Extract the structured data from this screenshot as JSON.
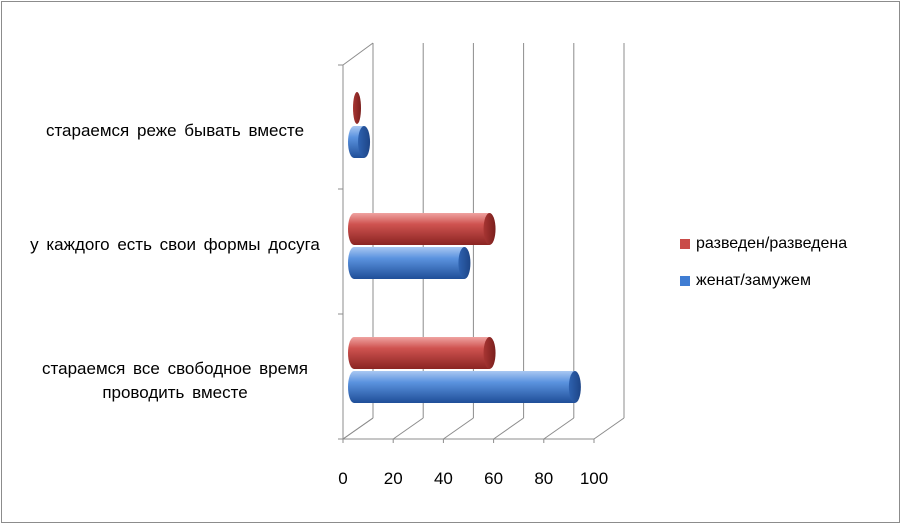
{
  "chart_data": {
    "type": "bar",
    "orientation": "horizontal",
    "style": "3d-cylinder",
    "categories": [
      "стараемся  все  свободное время проводить  вместе",
      "у  каждого  есть  свои  формы досуга",
      "стараемся  реже  бывать вместе"
    ],
    "series": [
      {
        "name": "женат/замужем",
        "color": "#3f7dd3",
        "values": [
          88,
          44,
          4
        ]
      },
      {
        "name": "разведен/разведена",
        "color": "#c94b48",
        "values": [
          54,
          54,
          0
        ]
      }
    ],
    "xlim": [
      0,
      100
    ],
    "ticks": [
      "0",
      "20",
      "40",
      "60",
      "80",
      "100"
    ],
    "grid": true,
    "legend_position": "right"
  }
}
